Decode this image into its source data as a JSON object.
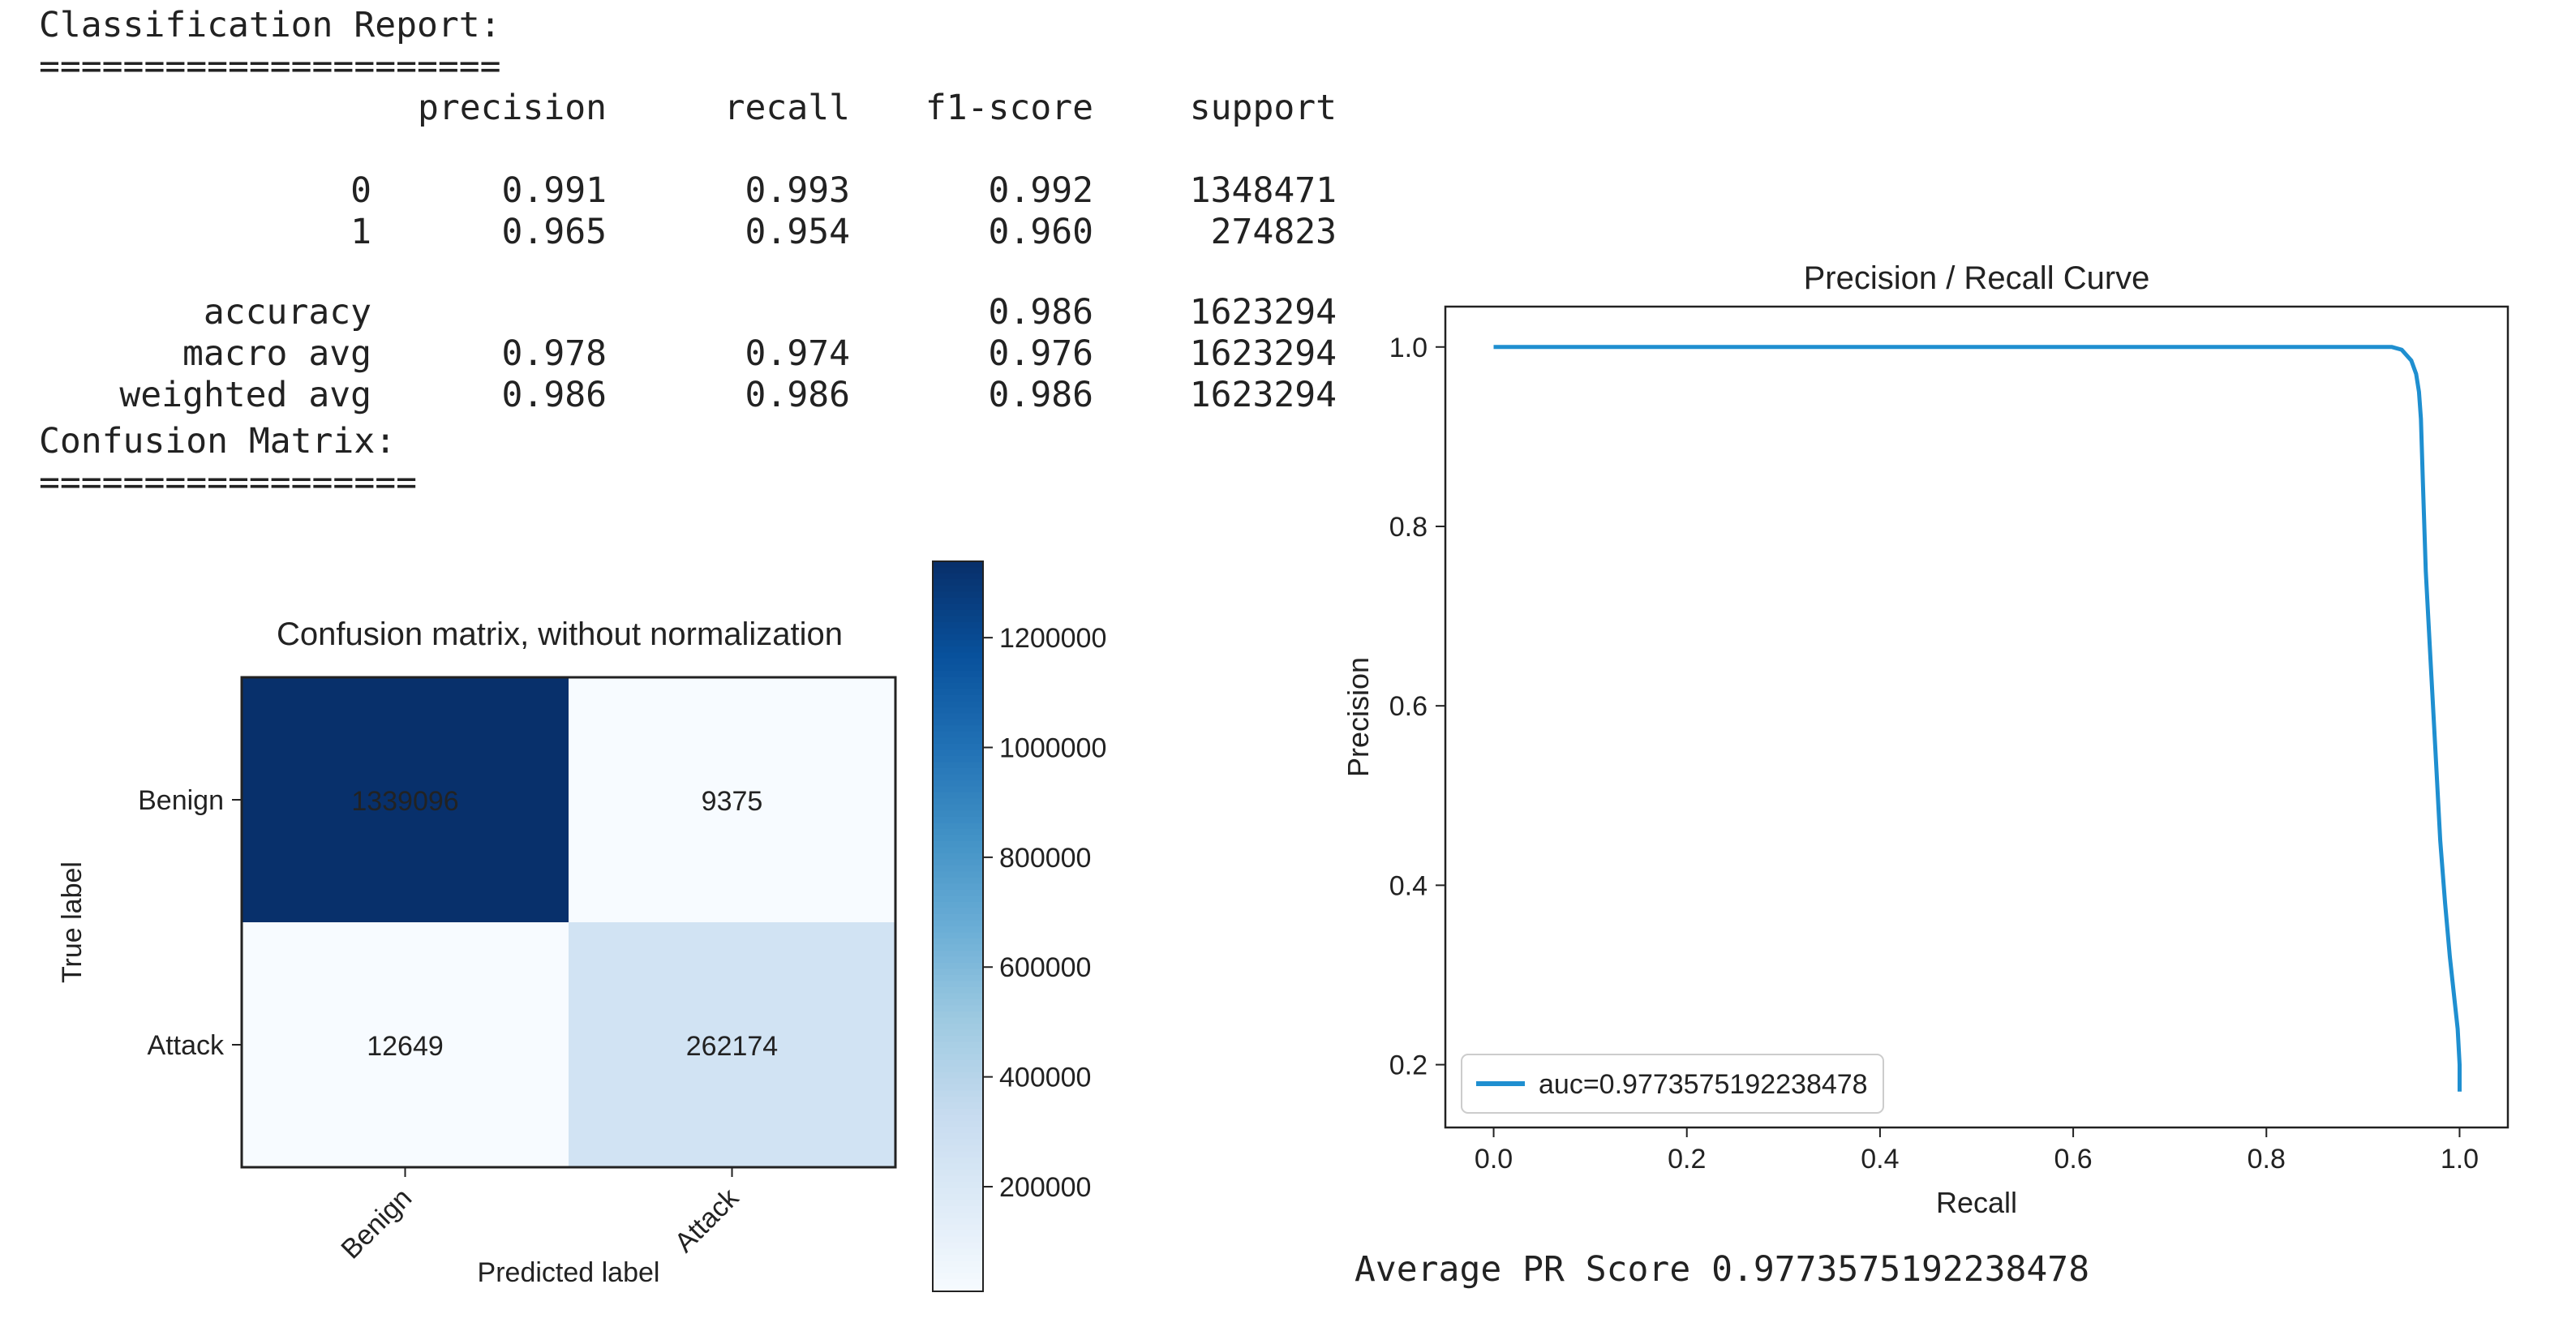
{
  "report": {
    "title": "Classification Report:",
    "underline1": "======================",
    "headers": [
      "precision",
      "recall",
      "f1-score",
      "support"
    ],
    "rows": [
      {
        "label": "0",
        "precision": "0.991",
        "recall": "0.993",
        "f1": "0.992",
        "support": "1348471"
      },
      {
        "label": "1",
        "precision": "0.965",
        "recall": "0.954",
        "f1": "0.960",
        "support": "274823"
      },
      {
        "label": "accuracy",
        "precision": "",
        "recall": "",
        "f1": "0.986",
        "support": "1623294"
      },
      {
        "label": "macro avg",
        "precision": "0.978",
        "recall": "0.974",
        "f1": "0.976",
        "support": "1623294"
      },
      {
        "label": "weighted avg",
        "precision": "0.986",
        "recall": "0.986",
        "f1": "0.986",
        "support": "1623294"
      }
    ],
    "cm_title": "Confusion Matrix:",
    "underline2": "=================="
  },
  "chart_data": [
    {
      "type": "heatmap",
      "title": "Confusion matrix, without normalization",
      "xlabel": "Predicted label",
      "ylabel": "True label",
      "x_categories": [
        "Benign",
        "Attack"
      ],
      "y_categories": [
        "Benign",
        "Attack"
      ],
      "values": [
        [
          1339096,
          9375
        ],
        [
          12649,
          262174
        ]
      ],
      "colorbar": {
        "min": 9375,
        "max": 1339096,
        "ticks": [
          200000,
          400000,
          600000,
          800000,
          1000000,
          1200000
        ],
        "tick_labels": [
          "200000",
          "400000",
          "600000",
          "800000",
          "1000000",
          "1200000"
        ],
        "colormap": "Blues"
      }
    },
    {
      "type": "line",
      "title": "Precision / Recall Curve",
      "xlabel": "Recall",
      "ylabel": "Precision",
      "xlim": [
        -0.05,
        1.05
      ],
      "ylim": [
        0.13,
        1.045
      ],
      "xticks": [
        "0.0",
        "0.2",
        "0.4",
        "0.6",
        "0.8",
        "1.0"
      ],
      "yticks": [
        "0.2",
        "0.4",
        "0.6",
        "0.8",
        "1.0"
      ],
      "series": [
        {
          "name": "auc=0.9773575192238478",
          "color": "#1f8fd0",
          "x": [
            0.0,
            0.2,
            0.4,
            0.6,
            0.8,
            0.9,
            0.93,
            0.94,
            0.95,
            0.955,
            0.958,
            0.96,
            0.962,
            0.965,
            0.97,
            0.975,
            0.98,
            0.985,
            0.99,
            0.995,
            0.998,
            1.0,
            1.0
          ],
          "y": [
            1.0,
            1.0,
            1.0,
            1.0,
            1.0,
            1.0,
            1.0,
            0.997,
            0.985,
            0.97,
            0.95,
            0.92,
            0.85,
            0.75,
            0.65,
            0.55,
            0.45,
            0.38,
            0.32,
            0.27,
            0.24,
            0.2,
            0.17
          ]
        }
      ],
      "legend": "bottom-left"
    }
  ],
  "footer": {
    "pr_score": "Average PR Score 0.9773575192238478"
  }
}
